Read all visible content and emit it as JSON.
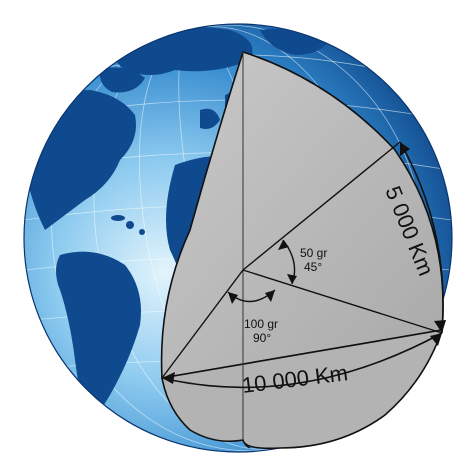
{
  "angles": {
    "large": {
      "gr": "100 gr",
      "deg": "90°"
    },
    "small": {
      "gr": "50 gr",
      "deg": "45°"
    }
  },
  "distances": {
    "quarter_meridian": "10 000 Km",
    "eighth_meridian": "5 000 Km"
  },
  "colors": {
    "ocean_light": "#cfe9f8",
    "ocean_mid": "#4aa3dd",
    "ocean_dark": "#0b3f80",
    "land": "#0f4a8f",
    "section": "#bcbcbc",
    "section_shadow": "#9a9a9a"
  }
}
